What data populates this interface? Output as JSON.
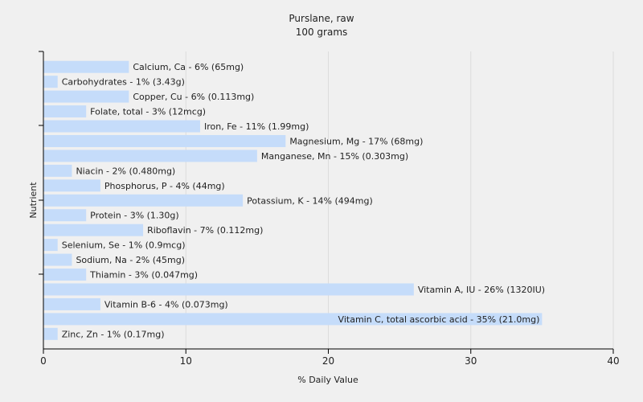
{
  "chart_data": {
    "type": "bar",
    "orientation": "horizontal",
    "title": "Purslane, raw",
    "subtitle": "100 grams",
    "xlabel": "% Daily Value",
    "ylabel": "Nutrient",
    "xlim": [
      0,
      40
    ],
    "xticks": [
      0,
      10,
      20,
      30,
      40
    ],
    "grid": true,
    "bar_color": "#c5dcfa",
    "gridline_color": "#dcdcdc",
    "axis_color": "#000000",
    "background": "#f0f0f0",
    "categories": [
      "Calcium, Ca",
      "Carbohydrates",
      "Copper, Cu",
      "Folate, total",
      "Iron, Fe",
      "Magnesium, Mg",
      "Manganese, Mn",
      "Niacin",
      "Phosphorus, P",
      "Potassium, K",
      "Protein",
      "Riboflavin",
      "Selenium, Se",
      "Sodium, Na",
      "Thiamin",
      "Vitamin A, IU",
      "Vitamin B-6",
      "Vitamin C, total ascorbic acid",
      "Zinc, Zn"
    ],
    "values": [
      6,
      1,
      6,
      3,
      11,
      17,
      15,
      2,
      4,
      14,
      3,
      7,
      1,
      2,
      3,
      26,
      4,
      35,
      1
    ],
    "labels": [
      "Calcium, Ca - 6% (65mg)",
      "Carbohydrates - 1% (3.43g)",
      "Copper, Cu - 6% (0.113mg)",
      "Folate, total - 3% (12mcg)",
      "Iron, Fe - 11% (1.99mg)",
      "Magnesium, Mg - 17% (68mg)",
      "Manganese, Mn - 15% (0.303mg)",
      "Niacin - 2% (0.480mg)",
      "Phosphorus, P - 4% (44mg)",
      "Potassium, K - 14% (494mg)",
      "Protein - 3% (1.30g)",
      "Riboflavin - 7% (0.112mg)",
      "Selenium, Se - 1% (0.9mcg)",
      "Sodium, Na - 2% (45mg)",
      "Thiamin - 3% (0.047mg)",
      "Vitamin A, IU - 26% (1320IU)",
      "Vitamin B-6 - 4% (0.073mg)",
      "Vitamin C, total ascorbic acid - 35% (21.0mg)",
      "Zinc, Zn - 1% (0.17mg)"
    ]
  }
}
